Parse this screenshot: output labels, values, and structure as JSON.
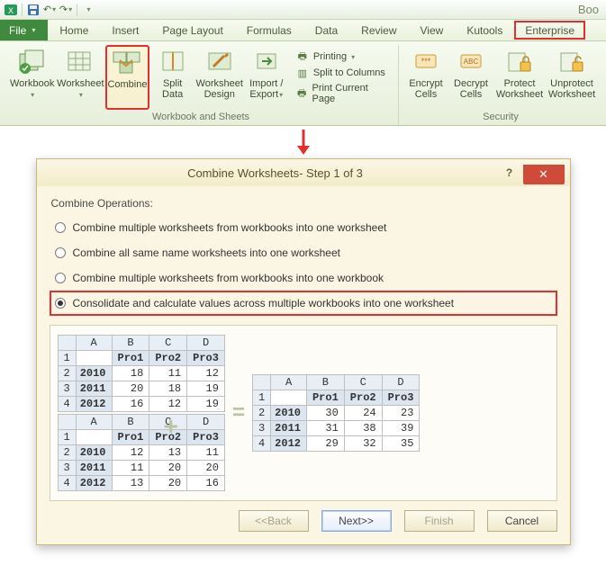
{
  "app_title": "Boo",
  "colors": {
    "ribbon_top": "#f6faf0",
    "ribbon_bottom": "#e7efda",
    "highlight_border": "#e03030",
    "dialog_bg": "#faf6e3",
    "dialog_border": "#c9b878",
    "close_bg": "#d04a3a",
    "table_header_bg": "#e8eef6",
    "table_label_bg": "#dce6f1"
  },
  "tabs": {
    "file": "File",
    "items": [
      "Home",
      "Insert",
      "Page Layout",
      "Formulas",
      "Data",
      "Review",
      "View",
      "Kutools",
      "Enterprise"
    ],
    "highlight_index": 8
  },
  "ribbon": {
    "group1": {
      "label": "Workbook and Sheets",
      "buttons": [
        {
          "label": "Workbook",
          "dd": true
        },
        {
          "label": "Worksheet",
          "dd": true
        },
        {
          "label": "Combine",
          "dd": false,
          "highlight": true
        },
        {
          "label": "Split\nData",
          "dd": false
        },
        {
          "label": "Worksheet\nDesign",
          "dd": false
        },
        {
          "label": "Import /\nExport",
          "dd": true
        }
      ],
      "small": [
        {
          "label": "Printing",
          "dd": true
        },
        {
          "label": "Split to Columns"
        },
        {
          "label": "Print Current Page"
        }
      ]
    },
    "group2": {
      "label": "Security",
      "buttons": [
        {
          "label": "Encrypt\nCells"
        },
        {
          "label": "Decrypt\nCells"
        },
        {
          "label": "Protect\nWorksheet"
        },
        {
          "label": "Unprotect\nWorksheet"
        }
      ]
    }
  },
  "dialog": {
    "title": "Combine Worksheets- Step 1 of 3",
    "help": "?",
    "close": "✕",
    "section": "Combine Operations:",
    "options": [
      "Combine multiple worksheets from workbooks into one worksheet",
      "Combine all same name worksheets into one worksheet",
      "Combine multiple worksheets from workbooks into one workbook",
      "Consolidate and calculate values across multiple workbooks into one worksheet"
    ],
    "selected_index": 3,
    "buttons": {
      "back": "<<Back",
      "next": "Next>>",
      "finish": "Finish",
      "cancel": "Cancel"
    }
  },
  "preview": {
    "cols": [
      "A",
      "B",
      "C",
      "D"
    ],
    "rownums": [
      "1",
      "2",
      "3",
      "4"
    ],
    "headers": [
      "",
      "Pro1",
      "Pro2",
      "Pro3"
    ],
    "years": [
      "2010",
      "2011",
      "2012"
    ],
    "t1": [
      [
        18,
        11,
        12
      ],
      [
        20,
        18,
        19
      ],
      [
        16,
        12,
        19
      ]
    ],
    "t2": [
      [
        12,
        13,
        11
      ],
      [
        11,
        20,
        20
      ],
      [
        13,
        20,
        16
      ]
    ],
    "sum": [
      [
        30,
        24,
        23
      ],
      [
        31,
        38,
        39
      ],
      [
        29,
        32,
        35
      ]
    ]
  }
}
